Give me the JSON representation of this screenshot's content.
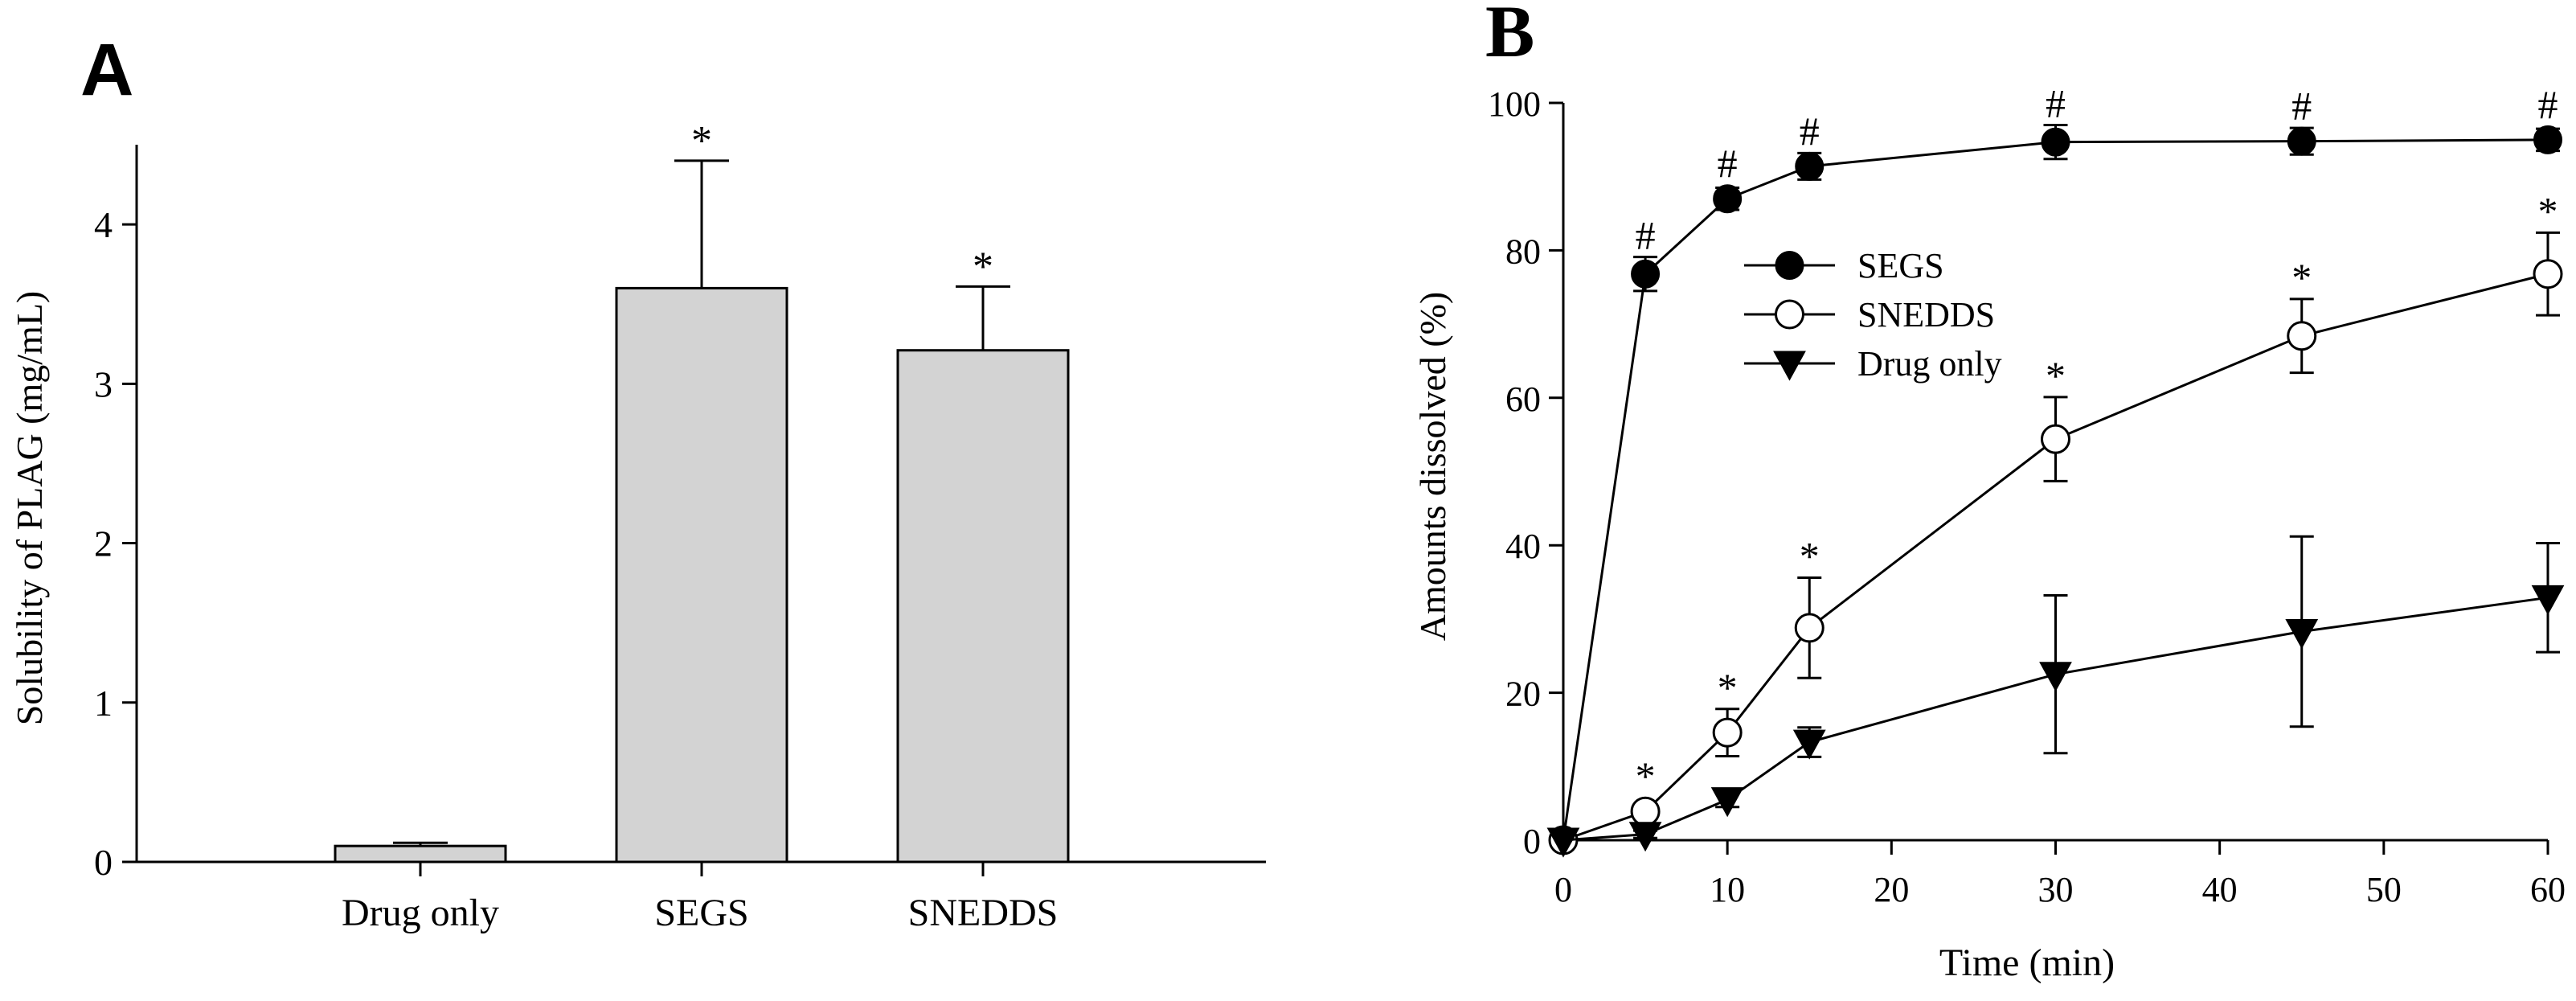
{
  "colors": {
    "bar_fill": "#d3d3d3",
    "ink": "#000000",
    "background": "#ffffff"
  },
  "panel_a": {
    "label": "A"
  },
  "panel_b": {
    "label": "B"
  },
  "chart_data": [
    {
      "type": "bar",
      "panel": "A",
      "categories": [
        "Drug only",
        "SEGS",
        "SNEDDS"
      ],
      "values": [
        0.1,
        3.6,
        3.21
      ],
      "errors": [
        0.02,
        0.8,
        0.4
      ],
      "annotations": [
        "",
        "*",
        "*"
      ],
      "ylabel": "Solubility of PLAG (mg/mL)",
      "xlabel": "",
      "ylim": [
        0,
        4.5
      ],
      "yticks": [
        0,
        1,
        2,
        3,
        4
      ],
      "grid": false
    },
    {
      "type": "line",
      "panel": "B",
      "x": [
        0,
        5,
        10,
        15,
        30,
        45,
        60
      ],
      "series": [
        {
          "name": "SEGS",
          "marker": "filled-circle",
          "values": [
            0,
            76.8,
            87.0,
            91.4,
            94.7,
            94.8,
            95.0
          ],
          "errors": [
            0,
            2.3,
            1.5,
            1.8,
            2.3,
            1.8,
            1.5
          ],
          "annotations": [
            "",
            "#",
            "#",
            "#",
            "#",
            "#",
            "#"
          ]
        },
        {
          "name": "SNEDDS",
          "marker": "open-circle",
          "values": [
            0,
            3.9,
            14.6,
            28.8,
            54.4,
            68.4,
            76.8
          ],
          "errors": [
            0,
            0.8,
            3.2,
            6.8,
            5.7,
            5.0,
            5.6
          ],
          "annotations": [
            "",
            "*",
            "*",
            "*",
            "*",
            "*",
            "*"
          ]
        },
        {
          "name": "Drug only",
          "marker": "filled-triangle-down",
          "values": [
            0,
            0.8,
            5.5,
            13.3,
            22.5,
            28.3,
            32.9
          ],
          "errors": [
            0,
            0.5,
            1.0,
            2.0,
            10.7,
            12.9,
            7.4
          ],
          "annotations": [
            "",
            "",
            "",
            "",
            "",
            "",
            ""
          ]
        }
      ],
      "xlabel": "Time (min)",
      "ylabel": "Amounts dissolved (%)",
      "xlim": [
        0,
        60
      ],
      "ylim": [
        0,
        100
      ],
      "xticks": [
        0,
        10,
        20,
        30,
        40,
        50,
        60
      ],
      "yticks": [
        0,
        20,
        40,
        60,
        80,
        100
      ],
      "legend": "upper-left",
      "grid": false
    }
  ]
}
